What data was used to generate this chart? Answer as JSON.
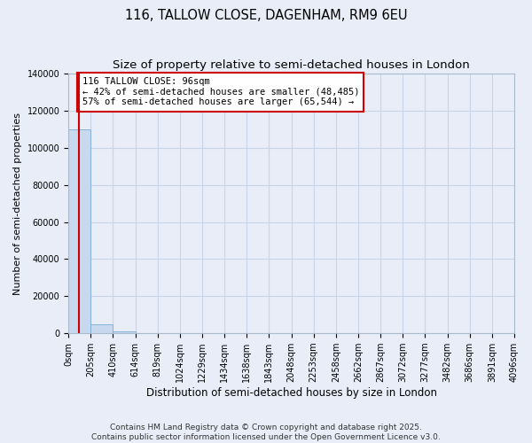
{
  "title_line1": "116, TALLOW CLOSE, DAGENHAM, RM9 6EU",
  "title_line2": "Size of property relative to semi-detached houses in London",
  "xlabel": "Distribution of semi-detached houses by size in London",
  "ylabel": "Number of semi-detached properties",
  "annotation_title": "116 TALLOW CLOSE: 96sqm",
  "annotation_line2": "← 42% of semi-detached houses are smaller (48,485)",
  "annotation_line3": "57% of semi-detached houses are larger (65,544) →",
  "property_size": 96,
  "bin_edges": [
    0,
    205,
    410,
    614,
    819,
    1024,
    1229,
    1434,
    1638,
    1843,
    2048,
    2253,
    2458,
    2662,
    2867,
    3072,
    3277,
    3482,
    3686,
    3891,
    4096
  ],
  "bar_values": [
    110000,
    5000,
    800,
    200,
    80,
    40,
    20,
    15,
    10,
    8,
    5,
    4,
    3,
    2,
    2,
    1,
    1,
    1,
    1,
    1
  ],
  "bar_color": "#c8d8ef",
  "bar_edge_color": "#7aadd4",
  "vline_color": "#cc0000",
  "ylim": [
    0,
    140000
  ],
  "yticks": [
    0,
    20000,
    40000,
    60000,
    80000,
    100000,
    120000,
    140000
  ],
  "footer_line1": "Contains HM Land Registry data © Crown copyright and database right 2025.",
  "footer_line2": "Contains public sector information licensed under the Open Government Licence v3.0.",
  "bg_color": "#e8edf8",
  "grid_color": "#c8d4e8",
  "title_fontsize": 10.5,
  "subtitle_fontsize": 9.5,
  "tick_label_fontsize": 7,
  "ylabel_fontsize": 8,
  "xlabel_fontsize": 8.5,
  "annotation_fontsize": 7.5,
  "annotation_box_color": "#ffffff",
  "annotation_box_edge": "#cc0000",
  "footer_fontsize": 6.5
}
